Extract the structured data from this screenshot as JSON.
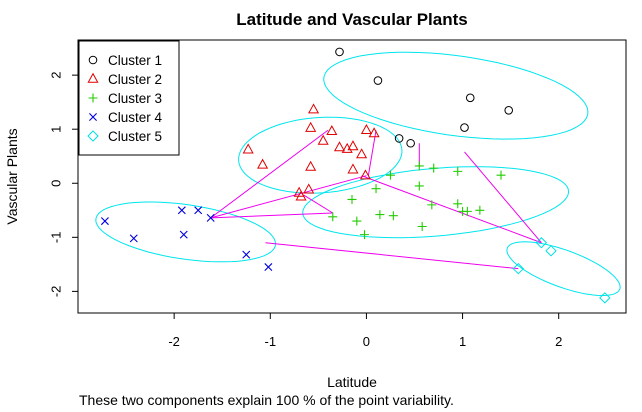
{
  "chart_data": {
    "type": "scatter",
    "title": "Latitude and Vascular Plants",
    "xlabel": "Latitude",
    "ylabel": "Vascular Plants",
    "subtitle": "These two components explain 100 % of the point variability.",
    "xlim": [
      -3.0,
      2.7
    ],
    "ylim": [
      -2.4,
      2.65
    ],
    "xticks": [
      -2,
      -1,
      0,
      1,
      2
    ],
    "yticks": [
      -2,
      -1,
      0,
      1,
      2
    ],
    "legend_position": "top-left",
    "series": [
      {
        "name": "Cluster 1",
        "color": "#000000",
        "marker": "circle",
        "points": [
          [
            -0.28,
            2.43
          ],
          [
            0.12,
            1.9
          ],
          [
            1.08,
            1.58
          ],
          [
            1.48,
            1.35
          ],
          [
            1.02,
            1.03
          ],
          [
            0.34,
            0.83
          ],
          [
            0.46,
            0.74
          ]
        ],
        "ellipse": {
          "cx": 0.93,
          "cy": 1.62,
          "a": 1.42,
          "b": 0.72,
          "angle_deg": -17
        }
      },
      {
        "name": "Cluster 2",
        "color": "#df0000",
        "marker": "triangle",
        "points": [
          [
            -0.55,
            1.36
          ],
          [
            -0.58,
            1.02
          ],
          [
            -0.36,
            0.96
          ],
          [
            -0.0,
            0.98
          ],
          [
            0.08,
            0.92
          ],
          [
            -1.23,
            0.62
          ],
          [
            -0.45,
            0.78
          ],
          [
            -0.28,
            0.66
          ],
          [
            -0.2,
            0.63
          ],
          [
            -0.14,
            0.68
          ],
          [
            -0.05,
            0.53
          ],
          [
            -1.08,
            0.34
          ],
          [
            -0.58,
            0.3
          ],
          [
            -0.14,
            0.25
          ],
          [
            -0.01,
            0.14
          ],
          [
            -0.7,
            -0.18
          ],
          [
            -0.6,
            -0.12
          ],
          [
            -0.68,
            -0.25
          ]
        ],
        "ellipse": {
          "cx": -0.48,
          "cy": 0.52,
          "a": 0.86,
          "b": 0.69,
          "angle_deg": 15
        }
      },
      {
        "name": "Cluster 3",
        "color": "#22cc00",
        "marker": "plus",
        "points": [
          [
            0.55,
            0.32
          ],
          [
            0.7,
            0.28
          ],
          [
            0.95,
            0.22
          ],
          [
            1.4,
            0.15
          ],
          [
            0.25,
            0.15
          ],
          [
            0.1,
            -0.1
          ],
          [
            0.55,
            -0.05
          ],
          [
            0.68,
            -0.4
          ],
          [
            0.95,
            -0.38
          ],
          [
            1.0,
            -0.52
          ],
          [
            1.05,
            -0.52
          ],
          [
            1.18,
            -0.5
          ],
          [
            -0.35,
            -0.62
          ],
          [
            -0.1,
            -0.7
          ],
          [
            0.14,
            -0.58
          ],
          [
            0.28,
            -0.6
          ],
          [
            0.58,
            -0.8
          ],
          [
            -0.02,
            -0.95
          ],
          [
            -0.15,
            -0.3
          ]
        ],
        "ellipse": {
          "cx": 0.72,
          "cy": -0.35,
          "a": 1.4,
          "b": 0.62,
          "angle_deg": 10
        }
      },
      {
        "name": "Cluster 4",
        "color": "#0000e0",
        "marker": "x",
        "points": [
          [
            -2.72,
            -0.7
          ],
          [
            -2.42,
            -1.02
          ],
          [
            -1.92,
            -0.5
          ],
          [
            -1.75,
            -0.5
          ],
          [
            -1.62,
            -0.64
          ],
          [
            -1.9,
            -0.95
          ],
          [
            -1.25,
            -1.32
          ],
          [
            -1.02,
            -1.55
          ]
        ],
        "ellipse": {
          "cx": -1.88,
          "cy": -0.9,
          "a": 0.97,
          "b": 0.49,
          "angle_deg": -18
        }
      },
      {
        "name": "Cluster 5",
        "color": "#00e0e0",
        "marker": "diamond",
        "points": [
          [
            1.82,
            -1.1
          ],
          [
            1.92,
            -1.25
          ],
          [
            1.58,
            -1.58
          ],
          [
            2.48,
            -2.12
          ]
        ],
        "ellipse": {
          "cx": 2.05,
          "cy": -1.58,
          "a": 0.71,
          "b": 0.3,
          "angle_deg": -38
        }
      }
    ],
    "link_color": "#ee00ee",
    "links": [
      [
        [
          -1.62,
          -0.64
        ],
        [
          -0.4,
          0.98
        ]
      ],
      [
        [
          -1.62,
          -0.64
        ],
        [
          0.0,
          0.14
        ]
      ],
      [
        [
          -1.62,
          -0.64
        ],
        [
          -0.35,
          -0.55
        ]
      ],
      [
        [
          -1.05,
          -1.1
        ],
        [
          1.58,
          -1.58
        ]
      ],
      [
        [
          -0.05,
          0.14
        ],
        [
          1.82,
          -1.1
        ]
      ],
      [
        [
          0.55,
          0.74
        ],
        [
          0.55,
          0.3
        ]
      ],
      [
        [
          1.02,
          0.58
        ],
        [
          1.82,
          -1.1
        ]
      ],
      [
        [
          0.1,
          0.98
        ],
        [
          0.02,
          0.14
        ]
      ],
      [
        [
          -0.65,
          -0.22
        ],
        [
          -0.35,
          -0.55
        ]
      ]
    ]
  }
}
